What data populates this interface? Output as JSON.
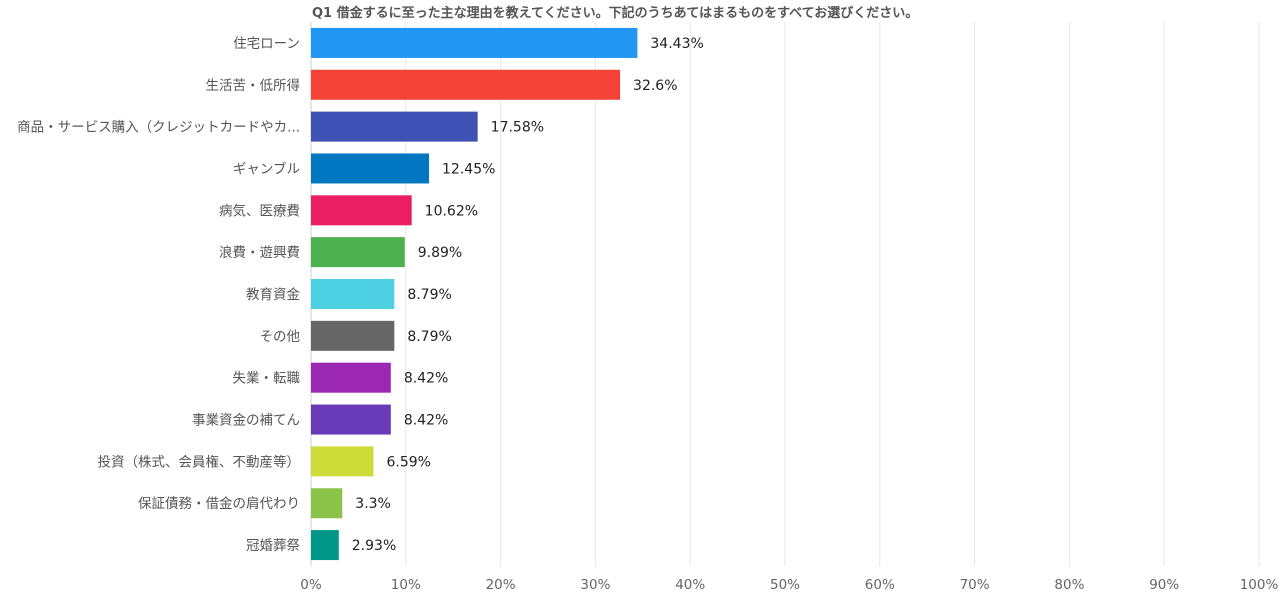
{
  "chart_data": {
    "type": "bar",
    "orientation": "horizontal",
    "title": "Q1 借金するに至った主な理由を教えてください。下記のうちあてはまるものをすべてお選びください。",
    "xlabel": "",
    "ylabel": "",
    "xlim": [
      0,
      100
    ],
    "x_ticks": [
      "0%",
      "10%",
      "20%",
      "30%",
      "40%",
      "50%",
      "60%",
      "70%",
      "80%",
      "90%",
      "100%"
    ],
    "grid": true,
    "legend": "none",
    "categories": [
      "住宅ローン",
      "生活苦・低所得",
      "商品・サービス購入（クレジットカードやカ...",
      "ギャンブル",
      "病気、医療費",
      "浪費・遊興費",
      "教育資金",
      "その他",
      "失業・転職",
      "事業資金の補てん",
      "投資（株式、会員権、不動産等）",
      "保証債務・借金の肩代わり",
      "冠婚葬祭"
    ],
    "values": [
      34.43,
      32.6,
      17.58,
      12.45,
      10.62,
      9.89,
      8.79,
      8.79,
      8.42,
      8.42,
      6.59,
      3.3,
      2.93
    ],
    "value_labels": [
      "34.43%",
      "32.6%",
      "17.58%",
      "12.45%",
      "10.62%",
      "9.89%",
      "8.79%",
      "8.79%",
      "8.42%",
      "8.42%",
      "6.59%",
      "3.3%",
      "2.93%"
    ],
    "colors": [
      "#2196f3",
      "#f44336",
      "#3f51b5",
      "#0077c0",
      "#e91e63",
      "#4caf50",
      "#4dd0e1",
      "#666666",
      "#9c27b0",
      "#673ab7",
      "#cddc39",
      "#8bc34a",
      "#009688"
    ]
  }
}
